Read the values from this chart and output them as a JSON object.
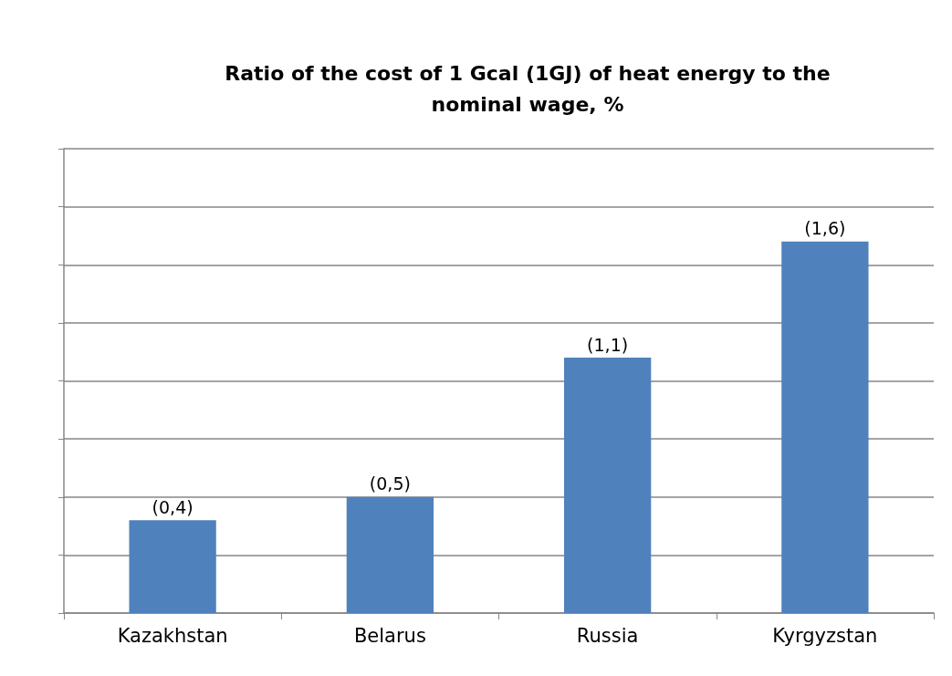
{
  "chart_data": {
    "type": "bar",
    "title": "Ratio of the cost of 1 Gcal (1GJ) of heat energy to the\nnominal wage, %",
    "categories": [
      "Kazakhstan",
      "Belarus",
      "Russia",
      "Kyrgyzstan"
    ],
    "values": [
      0.4,
      0.5,
      1.1,
      1.6
    ],
    "value_labels": [
      "(0,4)",
      "(0,5)",
      "(1,1)",
      "(1,6)"
    ],
    "color": "#4f81bd",
    "ylim": [
      0,
      2
    ],
    "yticks": [
      {
        "value": 0,
        "label": null
      },
      {
        "value": 0.25,
        "label": null
      },
      {
        "value": 0.5,
        "label": null
      },
      {
        "value": 0.75,
        "label": null
      },
      {
        "value": 1,
        "label": null
      },
      {
        "value": 1.25,
        "label": null
      },
      {
        "value": 1.5,
        "label": null
      },
      {
        "value": 1.75,
        "label": null
      },
      {
        "value": 2,
        "label": null
      }
    ],
    "tick_labels": "x",
    "grid": "y"
  }
}
